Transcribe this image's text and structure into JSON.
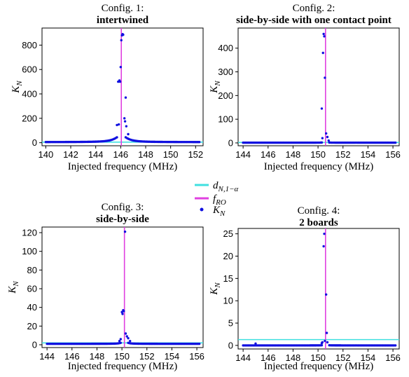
{
  "legend": {
    "items": [
      {
        "label": "d",
        "sub": "N,1−α",
        "kind": "line",
        "color": "#40e0e0"
      },
      {
        "label": "f",
        "sub": "RO",
        "kind": "line",
        "color": "#e040e0"
      },
      {
        "label": "K",
        "sub": "N",
        "kind": "dot",
        "color": "#1010e0"
      }
    ]
  },
  "chart_data": [
    {
      "type": "scatter",
      "title_line1": "Config. 1:",
      "title_line2": "intertwined",
      "xlabel": "Injected frequency (MHz)",
      "ylabel": "K",
      "ylabel_sub": "N",
      "xlim": [
        139.7,
        152.6
      ],
      "ylim": [
        -25,
        940
      ],
      "xticks": [
        140,
        142,
        144,
        146,
        148,
        150,
        152
      ],
      "yticks": [
        0,
        200,
        400,
        600,
        800
      ],
      "threshold": 5,
      "f_ro": 146.05,
      "peak": {
        "f0": 146.05,
        "amp": 55,
        "gamma": 0.55,
        "base": 5,
        "step": 0.1
      },
      "near_points": [
        [
          145.8,
          500
        ],
        [
          145.9,
          510
        ],
        [
          145.95,
          500
        ],
        [
          146.0,
          620
        ],
        [
          146.05,
          840
        ],
        [
          146.1,
          880
        ],
        [
          146.15,
          890
        ],
        [
          146.2,
          885
        ],
        [
          146.4,
          370
        ],
        [
          146.3,
          200
        ],
        [
          146.35,
          175
        ],
        [
          146.45,
          135
        ],
        [
          145.85,
          150
        ],
        [
          145.7,
          145
        ],
        [
          146.6,
          70
        ]
      ]
    },
    {
      "type": "scatter",
      "title_line1": "Config. 2:",
      "title_line2": "side-by-side with one contact point",
      "xlabel": "Injected frequency (MHz)",
      "ylabel": "K",
      "ylabel_sub": "N",
      "xlim": [
        143.6,
        156.5
      ],
      "ylim": [
        -12,
        485
      ],
      "xticks": [
        144,
        146,
        148,
        150,
        152,
        154,
        156
      ],
      "yticks": [
        0,
        100,
        200,
        300,
        400
      ],
      "threshold": 2,
      "f_ro": 150.6,
      "peak": {
        "f0": 150.6,
        "amp": 5,
        "gamma": 0.12,
        "base": 1,
        "step": 0.1
      },
      "near_points": [
        [
          150.3,
          145
        ],
        [
          150.4,
          380
        ],
        [
          150.45,
          460
        ],
        [
          150.5,
          450
        ],
        [
          150.55,
          275
        ],
        [
          150.65,
          40
        ],
        [
          150.75,
          25
        ],
        [
          150.35,
          20
        ],
        [
          150.85,
          10
        ]
      ]
    },
    {
      "type": "scatter",
      "title_line1": "Config. 3:",
      "title_line2": "side-by-side",
      "xlabel": "Injected frequency (MHz)",
      "ylabel": "K",
      "ylabel_sub": "N",
      "xlim": [
        143.6,
        156.5
      ],
      "ylim": [
        -3,
        126
      ],
      "xticks": [
        144,
        146,
        148,
        150,
        152,
        154,
        156
      ],
      "yticks": [
        0,
        20,
        40,
        60,
        80,
        100,
        120
      ],
      "threshold": 2,
      "f_ro": 150.2,
      "peak": {
        "f0": 150.2,
        "amp": 2.5,
        "gamma": 0.25,
        "base": 1,
        "step": 0.1
      },
      "near_points": [
        [
          150.0,
          35
        ],
        [
          150.05,
          33
        ],
        [
          150.1,
          37
        ],
        [
          150.15,
          36
        ],
        [
          150.25,
          121
        ],
        [
          150.3,
          12
        ],
        [
          150.4,
          9
        ],
        [
          150.5,
          7
        ],
        [
          150.65,
          4
        ],
        [
          149.9,
          6
        ],
        [
          149.8,
          4
        ]
      ]
    },
    {
      "type": "scatter",
      "title_line1": "Config. 4:",
      "title_line2": "2 boards",
      "xlabel": "Injected frequency (MHz)",
      "ylabel": "K",
      "ylabel_sub": "N",
      "xlim": [
        143.6,
        156.5
      ],
      "ylim": [
        -0.8,
        26.2
      ],
      "xticks": [
        144,
        146,
        148,
        150,
        152,
        154,
        156
      ],
      "yticks": [
        0,
        5,
        10,
        15,
        20,
        25
      ],
      "threshold": 1.3,
      "f_ro": 150.6,
      "peak": {
        "f0": 150.6,
        "amp": 0.1,
        "gamma": 0.2,
        "base": 0,
        "step": 0.1
      },
      "near_points": [
        [
          150.45,
          22.2
        ],
        [
          150.5,
          25.0
        ],
        [
          150.65,
          11.4
        ],
        [
          150.7,
          2.8
        ],
        [
          150.55,
          1.0
        ],
        [
          150.75,
          0.7
        ],
        [
          150.35,
          0.7
        ],
        [
          150.3,
          0.5
        ],
        [
          145.0,
          0.4
        ]
      ]
    }
  ]
}
